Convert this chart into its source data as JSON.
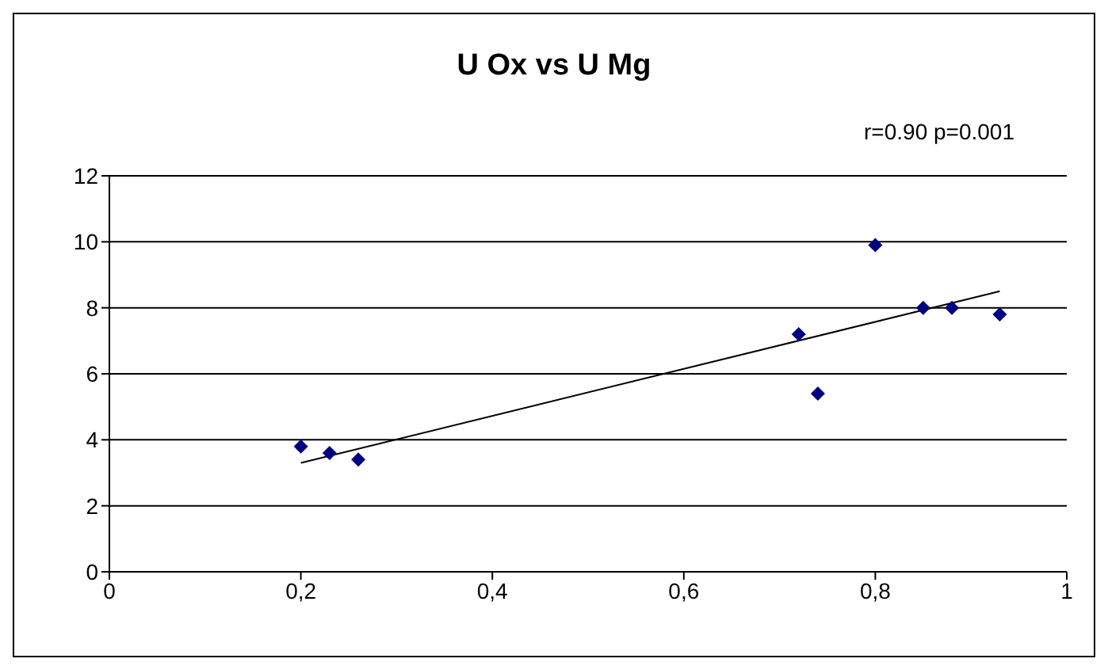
{
  "chart_data": {
    "type": "scatter",
    "title": "U Ox vs U Mg",
    "annotations": [
      "r=0.90 p=0.001"
    ],
    "xlim": [
      0,
      1
    ],
    "xticks": [
      0,
      {
        "value": 0.2,
        "label": "0,2"
      },
      {
        "value": 0.4,
        "label": "0,4"
      },
      {
        "value": 0.6,
        "label": "0,6"
      },
      {
        "value": 0.8,
        "label": "0,8"
      },
      1
    ],
    "ylim": [
      0,
      12
    ],
    "yticks": [
      0,
      2,
      4,
      6,
      8,
      10,
      12
    ],
    "grid": "y",
    "marker": "diamond",
    "series": [
      {
        "color": "#000080",
        "x": [
          0.2,
          0.23,
          0.26,
          0.72,
          0.74,
          0.8,
          0.85,
          0.88,
          0.93
        ],
        "values": [
          3.8,
          3.6,
          3.4,
          7.2,
          5.4,
          9.9,
          8.0,
          8.0,
          7.8
        ]
      },
      {
        "type": "line",
        "color": "#000000",
        "marker": "none",
        "x": [
          0.2,
          0.93
        ],
        "values": [
          3.3,
          8.5
        ]
      }
    ]
  }
}
